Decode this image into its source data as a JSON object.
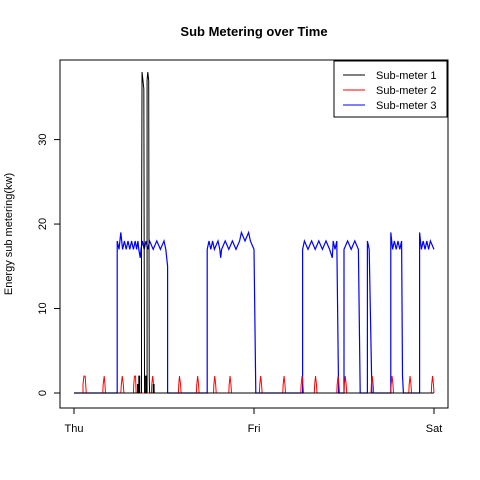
{
  "chart_data": {
    "type": "line",
    "title": "Sub Metering over Time",
    "xlabel": "",
    "ylabel": "Energy sub metering(kw)",
    "x_ticks": [
      "Thu",
      "Fri",
      "Sat"
    ],
    "xlim_days": [
      0,
      2
    ],
    "ylim": [
      0,
      38
    ],
    "y_ticks": [
      0,
      10,
      20,
      30
    ],
    "grid": false,
    "legend_position": "top-right",
    "series": [
      {
        "name": "Sub-meter 1",
        "color": "#000000",
        "points": [
          [
            0,
            0
          ],
          [
            0.353,
            0
          ],
          [
            0.353,
            1
          ],
          [
            0.356,
            1
          ],
          [
            0.356,
            0
          ],
          [
            0.36,
            0
          ],
          [
            0.36,
            2
          ],
          [
            0.365,
            2
          ],
          [
            0.365,
            0
          ],
          [
            0.375,
            0
          ],
          [
            0.375,
            16
          ],
          [
            0.378,
            38
          ],
          [
            0.383,
            37
          ],
          [
            0.388,
            36
          ],
          [
            0.39,
            16
          ],
          [
            0.392,
            0
          ],
          [
            0.396,
            0
          ],
          [
            0.396,
            2
          ],
          [
            0.402,
            2
          ],
          [
            0.402,
            0
          ],
          [
            0.406,
            0
          ],
          [
            0.406,
            37
          ],
          [
            0.41,
            38
          ],
          [
            0.415,
            37
          ],
          [
            0.418,
            2
          ],
          [
            0.42,
            0
          ],
          [
            0.44,
            0
          ],
          [
            0.44,
            1
          ],
          [
            0.445,
            1
          ],
          [
            0.445,
            0
          ],
          [
            2,
            0
          ]
        ]
      },
      {
        "name": "Sub-meter 2",
        "color": "#ff0000",
        "points": [
          [
            0,
            0
          ],
          [
            0.05,
            0
          ],
          [
            0.05,
            1
          ],
          [
            0.055,
            2
          ],
          [
            0.062,
            2
          ],
          [
            0.065,
            1
          ],
          [
            0.068,
            0
          ],
          [
            0.16,
            0
          ],
          [
            0.162,
            1
          ],
          [
            0.168,
            2
          ],
          [
            0.172,
            1
          ],
          [
            0.175,
            0
          ],
          [
            0.26,
            0
          ],
          [
            0.263,
            1
          ],
          [
            0.268,
            2
          ],
          [
            0.274,
            1
          ],
          [
            0.277,
            0
          ],
          [
            0.33,
            0
          ],
          [
            0.332,
            1
          ],
          [
            0.336,
            2
          ],
          [
            0.342,
            2
          ],
          [
            0.345,
            0
          ],
          [
            0.43,
            0
          ],
          [
            0.432,
            1
          ],
          [
            0.437,
            2
          ],
          [
            0.442,
            1
          ],
          [
            0.446,
            0
          ],
          [
            0.58,
            0
          ],
          [
            0.582,
            1
          ],
          [
            0.586,
            2
          ],
          [
            0.592,
            1
          ],
          [
            0.595,
            0
          ],
          [
            0.68,
            0
          ],
          [
            0.682,
            1
          ],
          [
            0.687,
            2
          ],
          [
            0.692,
            1
          ],
          [
            0.695,
            0
          ],
          [
            0.775,
            0
          ],
          [
            0.777,
            1
          ],
          [
            0.782,
            2
          ],
          [
            0.787,
            1
          ],
          [
            0.79,
            0
          ],
          [
            0.86,
            0
          ],
          [
            0.862,
            1
          ],
          [
            0.867,
            2
          ],
          [
            0.872,
            1
          ],
          [
            0.875,
            0
          ],
          [
            1.03,
            0
          ],
          [
            1.032,
            1
          ],
          [
            1.037,
            2
          ],
          [
            1.042,
            1
          ],
          [
            1.045,
            0
          ],
          [
            1.16,
            0
          ],
          [
            1.162,
            1
          ],
          [
            1.167,
            2
          ],
          [
            1.172,
            1
          ],
          [
            1.175,
            0
          ],
          [
            1.26,
            0
          ],
          [
            1.262,
            1
          ],
          [
            1.267,
            2
          ],
          [
            1.272,
            1
          ],
          [
            1.275,
            0
          ],
          [
            1.335,
            0
          ],
          [
            1.337,
            1
          ],
          [
            1.342,
            2
          ],
          [
            1.347,
            1
          ],
          [
            1.35,
            0
          ],
          [
            1.46,
            0
          ],
          [
            1.462,
            1
          ],
          [
            1.467,
            2
          ],
          [
            1.472,
            1
          ],
          [
            1.475,
            0
          ],
          [
            1.5,
            0
          ],
          [
            1.502,
            1
          ],
          [
            1.507,
            2
          ],
          [
            1.512,
            1
          ],
          [
            1.515,
            0
          ],
          [
            1.65,
            0
          ],
          [
            1.652,
            1
          ],
          [
            1.657,
            2
          ],
          [
            1.662,
            1
          ],
          [
            1.665,
            0
          ],
          [
            1.76,
            0
          ],
          [
            1.762,
            1
          ],
          [
            1.767,
            2
          ],
          [
            1.772,
            1
          ],
          [
            1.775,
            0
          ],
          [
            1.86,
            0
          ],
          [
            1.862,
            1
          ],
          [
            1.867,
            2
          ],
          [
            1.872,
            1
          ],
          [
            1.875,
            0
          ],
          [
            1.985,
            0
          ],
          [
            1.987,
            1
          ],
          [
            1.992,
            2
          ],
          [
            1.997,
            1
          ],
          [
            2,
            0
          ]
        ]
      },
      {
        "name": "Sub-meter 3",
        "color": "#0000ff",
        "points": [
          [
            0,
            0
          ],
          [
            0.24,
            0
          ],
          [
            0.24,
            18
          ],
          [
            0.25,
            17
          ],
          [
            0.26,
            19
          ],
          [
            0.27,
            17
          ],
          [
            0.28,
            18
          ],
          [
            0.29,
            17
          ],
          [
            0.3,
            18
          ],
          [
            0.31,
            17
          ],
          [
            0.32,
            18
          ],
          [
            0.33,
            17
          ],
          [
            0.34,
            18
          ],
          [
            0.348,
            17
          ],
          [
            0.355,
            18
          ],
          [
            0.36,
            17
          ],
          [
            0.368,
            16
          ],
          [
            0.372,
            17
          ],
          [
            0.38,
            18
          ],
          [
            0.39,
            17
          ],
          [
            0.4,
            18
          ],
          [
            0.41,
            17
          ],
          [
            0.42,
            18
          ],
          [
            0.44,
            17
          ],
          [
            0.46,
            18
          ],
          [
            0.48,
            17
          ],
          [
            0.5,
            18
          ],
          [
            0.51,
            17
          ],
          [
            0.515,
            16
          ],
          [
            0.52,
            15
          ],
          [
            0.52,
            0
          ],
          [
            0.74,
            0
          ],
          [
            0.74,
            17
          ],
          [
            0.75,
            18
          ],
          [
            0.76,
            17
          ],
          [
            0.77,
            18
          ],
          [
            0.78,
            17
          ],
          [
            0.8,
            18
          ],
          [
            0.81,
            17
          ],
          [
            0.815,
            16
          ],
          [
            0.82,
            17
          ],
          [
            0.84,
            18
          ],
          [
            0.86,
            17
          ],
          [
            0.88,
            18
          ],
          [
            0.9,
            17
          ],
          [
            0.92,
            18
          ],
          [
            0.93,
            19
          ],
          [
            0.95,
            18
          ],
          [
            0.97,
            19
          ],
          [
            0.98,
            18
          ],
          [
            1.0,
            17
          ],
          [
            1.01,
            0
          ],
          [
            1.27,
            0
          ],
          [
            1.27,
            17
          ],
          [
            1.28,
            18
          ],
          [
            1.3,
            17
          ],
          [
            1.32,
            18
          ],
          [
            1.34,
            17
          ],
          [
            1.36,
            18
          ],
          [
            1.38,
            17
          ],
          [
            1.4,
            18
          ],
          [
            1.42,
            17
          ],
          [
            1.435,
            16
          ],
          [
            1.44,
            18
          ],
          [
            1.45,
            17
          ],
          [
            1.46,
            18
          ],
          [
            1.47,
            0
          ],
          [
            1.5,
            0
          ],
          [
            1.5,
            17
          ],
          [
            1.52,
            18
          ],
          [
            1.54,
            17
          ],
          [
            1.56,
            18
          ],
          [
            1.58,
            17
          ],
          [
            1.59,
            0
          ],
          [
            1.63,
            0
          ],
          [
            1.63,
            18
          ],
          [
            1.64,
            17
          ],
          [
            1.655,
            0
          ],
          [
            1.76,
            0
          ],
          [
            1.76,
            19
          ],
          [
            1.77,
            17
          ],
          [
            1.78,
            18
          ],
          [
            1.79,
            17
          ],
          [
            1.8,
            18
          ],
          [
            1.81,
            17
          ],
          [
            1.82,
            18
          ],
          [
            1.825,
            2
          ],
          [
            1.83,
            0
          ],
          [
            1.92,
            0
          ],
          [
            1.92,
            19
          ],
          [
            1.93,
            17
          ],
          [
            1.94,
            18
          ],
          [
            1.95,
            17
          ],
          [
            1.96,
            18
          ],
          [
            1.97,
            17
          ],
          [
            1.98,
            18
          ],
          [
            2,
            17
          ]
        ]
      }
    ]
  }
}
